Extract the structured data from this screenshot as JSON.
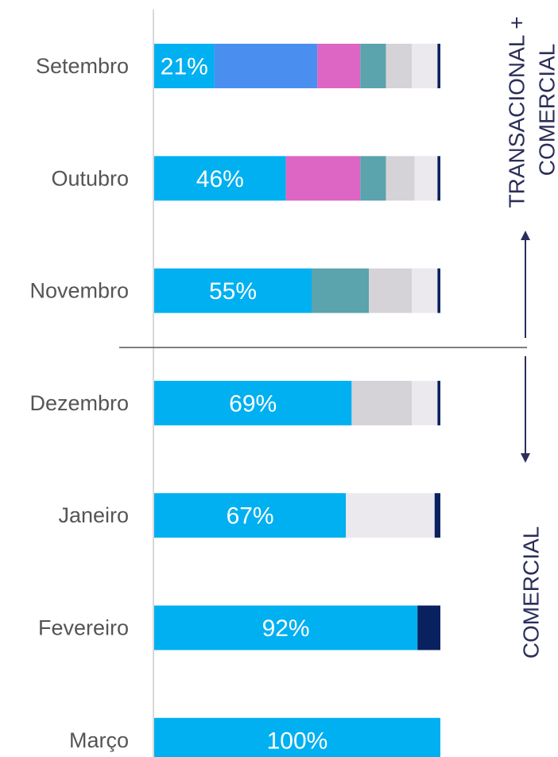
{
  "chart_data": {
    "type": "stacked_bar_horizontal",
    "categories": [
      "Setembro",
      "Outubro",
      "Novembro",
      "Dezembro",
      "Janeiro",
      "Fevereiro",
      "Março"
    ],
    "xlim": [
      0,
      100
    ],
    "series": [
      {
        "color": "#00b0f0",
        "values": [
          21,
          46,
          55,
          69,
          67,
          92,
          100
        ],
        "value_labels": [
          "21%",
          "46%",
          "55%",
          "69%",
          "67%",
          "92%",
          "100%"
        ]
      },
      {
        "color": "#4a8ff0",
        "values": [
          36,
          null,
          null,
          null,
          null,
          null,
          null
        ]
      },
      {
        "color": "#dd66c4",
        "values": [
          15,
          26,
          null,
          null,
          null,
          null,
          null
        ]
      },
      {
        "color": "#5ba3ad",
        "values": [
          9,
          9,
          20,
          null,
          null,
          null,
          null
        ]
      },
      {
        "color": "#d6d3d8",
        "values": [
          9,
          10,
          15,
          21,
          null,
          null,
          null
        ]
      },
      {
        "color": "#ebe9ee",
        "values": [
          9,
          8,
          9,
          9,
          31,
          null,
          null
        ]
      },
      {
        "color": "#0a2160",
        "values": [
          1,
          1,
          1,
          1,
          2,
          8,
          null
        ]
      }
    ],
    "annotations": [
      "TRANSACIONAL +",
      "COMERCIAL",
      "COMERCIAL"
    ]
  }
}
